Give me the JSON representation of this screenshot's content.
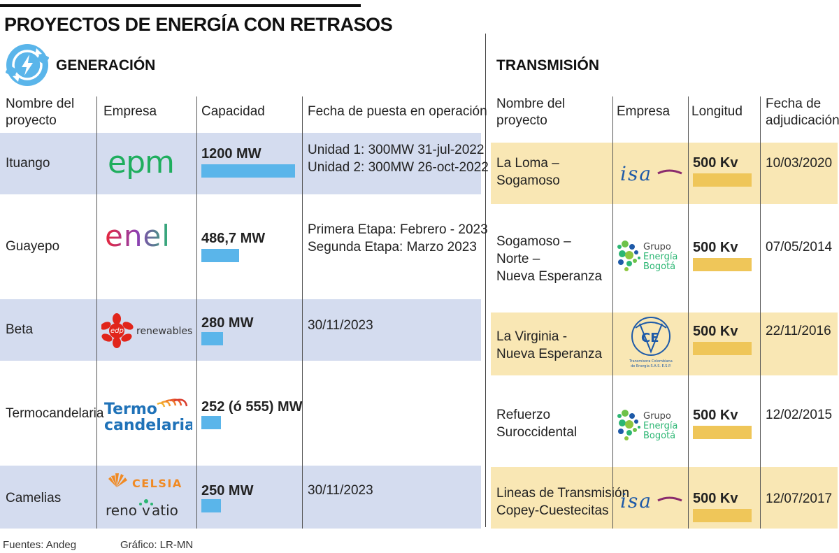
{
  "title": "PROYECTOS DE ENERGÍA CON RETRASOS",
  "generacion": {
    "section_title": "GENERACIÓN",
    "section_icon": "power-refresh-icon",
    "columns": [
      "Nombre del proyecto",
      "Empresa",
      "Capacidad",
      "Fecha de puesta en operación"
    ],
    "max_capacity_mw": 1200,
    "rows": [
      {
        "project": "Ituango",
        "company_logo": "epm",
        "capacity_label": "1200 MW",
        "capacity_mw": 1200,
        "dates": [
          "Unidad 1: 300MW 31-jul-2022",
          "Unidad 2: 300MW 26-oct-2022"
        ]
      },
      {
        "project": "Guayepo",
        "company_logo": "enel",
        "capacity_label": "486,7 MW",
        "capacity_mw": 486.7,
        "dates": [
          "Primera Etapa: Febrero - 2023",
          "Segunda Etapa: Marzo 2023"
        ]
      },
      {
        "project": "Beta",
        "company_logo": "edp renewables",
        "capacity_label": "280 MW",
        "capacity_mw": 280,
        "dates": [
          "30/11/2023"
        ]
      },
      {
        "project": "Termocandelaria",
        "company_logo": "Termo candelaria",
        "capacity_label": "252 (ó 555) MW",
        "capacity_mw": 252,
        "dates": []
      },
      {
        "project": "Camelias",
        "company_logo": "CELSIA renovatio",
        "capacity_label": "250 MW",
        "capacity_mw": 250,
        "dates": [
          "30/11/2023"
        ]
      }
    ]
  },
  "transmision": {
    "section_title": "TRANSMISIÓN",
    "columns": [
      "Nombre del proyecto",
      "Empresa",
      "Longitud",
      "Fecha de adjudicación"
    ],
    "rows": [
      {
        "project": [
          "La Loma –",
          "Sogamoso"
        ],
        "company_logo": "isa",
        "length_label": "500 Kv",
        "length_kv": 500,
        "date": "10/03/2020"
      },
      {
        "project": [
          "Sogamoso –",
          "Norte –",
          "Nueva Esperanza"
        ],
        "company_logo": "Grupo Energía Bogotá",
        "length_label": "500 Kv",
        "length_kv": 500,
        "date": "07/05/2014"
      },
      {
        "project": [
          "La Virginia -",
          "Nueva Esperanza"
        ],
        "company_logo": "TCE",
        "length_label": "500 Kv",
        "length_kv": 500,
        "date": "22/11/2016"
      },
      {
        "project": [
          "Refuerzo",
          "Suroccidental"
        ],
        "company_logo": "Grupo Energía Bogotá",
        "length_label": "500 Kv",
        "length_kv": 500,
        "date": "12/02/2015"
      },
      {
        "project": [
          "Lineas de Transmisión",
          "Copey-Cuestecitas"
        ],
        "company_logo": "isa",
        "length_label": "500 Kv",
        "length_kv": 500,
        "date": "12/07/2017"
      }
    ]
  },
  "footer": {
    "sources": "Fuentes: Andeg",
    "graphic": "Gráfico: LR-MN"
  },
  "colors": {
    "generation_band": "#d4dcef",
    "transmission_band": "#f9e7b4",
    "generation_bar": "#5ab5ea",
    "transmission_bar": "#efc659"
  }
}
